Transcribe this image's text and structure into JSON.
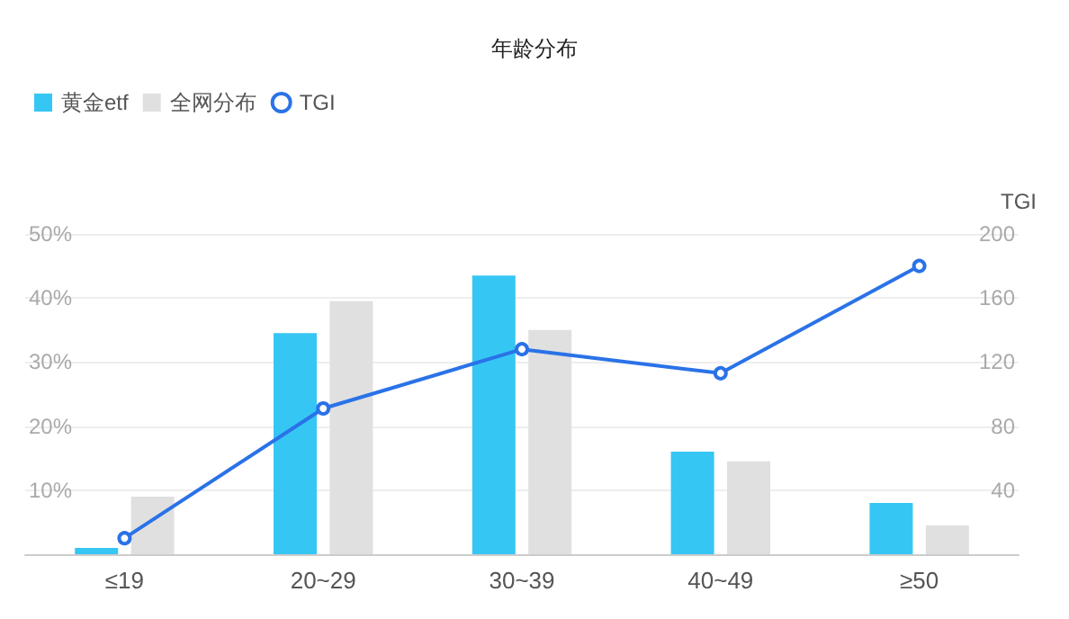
{
  "chart_data": {
    "type": "bar",
    "title": "年龄分布",
    "y2label": "TGI",
    "categories": [
      "≤19",
      "20~29",
      "30~39",
      "40~49",
      "≥50"
    ],
    "series": [
      {
        "name": "黄金etf",
        "color": "#36c6f4",
        "values": [
          1,
          34.5,
          43.5,
          16,
          8
        ]
      },
      {
        "name": "全网分布",
        "color": "#e0e0e0",
        "values": [
          9,
          39.5,
          35,
          14.5,
          4.5
        ]
      },
      {
        "name": "TGI",
        "type": "line",
        "axis": "y2",
        "color": "#2a72e8",
        "values": [
          10,
          91,
          128,
          113,
          180
        ]
      }
    ],
    "ylim": [
      0,
      50
    ],
    "yticks": [
      {
        "value": 10,
        "label": "10%"
      },
      {
        "value": 20,
        "label": "20%"
      },
      {
        "value": 30,
        "label": "30%"
      },
      {
        "value": 40,
        "label": "40%"
      },
      {
        "value": 50,
        "label": "50%"
      }
    ],
    "y2lim": [
      0,
      200
    ],
    "y2ticks": [
      40,
      80,
      120,
      160,
      200
    ],
    "grid": "y",
    "legend": "top left",
    "marker": "circle"
  }
}
